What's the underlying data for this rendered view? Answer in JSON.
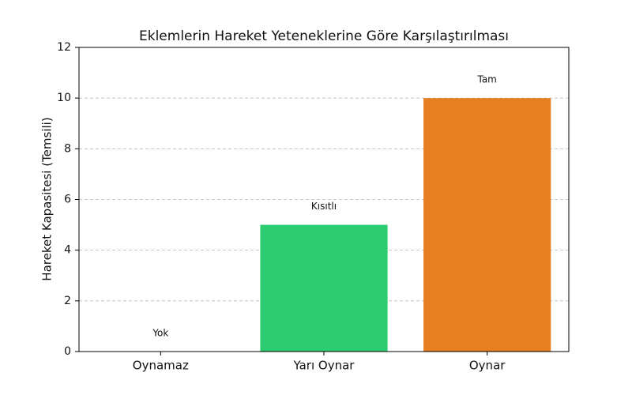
{
  "chart_data": {
    "type": "bar",
    "title": "Eklemlerin Hareket Yeteneklerine Göre Karşılaştırılması",
    "y_label": "Hareket Kapasitesi (Temsili)",
    "categories": [
      "Oynamaz",
      "Yarı Oynar",
      "Oynar"
    ],
    "values": [
      0,
      5,
      10
    ],
    "value_labels": [
      "Yok",
      "Kısıtlı",
      "Tam"
    ],
    "colors": [
      "#e74c3c",
      "#2ecc71",
      "#e67e22"
    ],
    "ylim": [
      0,
      12
    ],
    "yticks": [
      0,
      2,
      4,
      6,
      8,
      10,
      12
    ],
    "grid": true
  }
}
